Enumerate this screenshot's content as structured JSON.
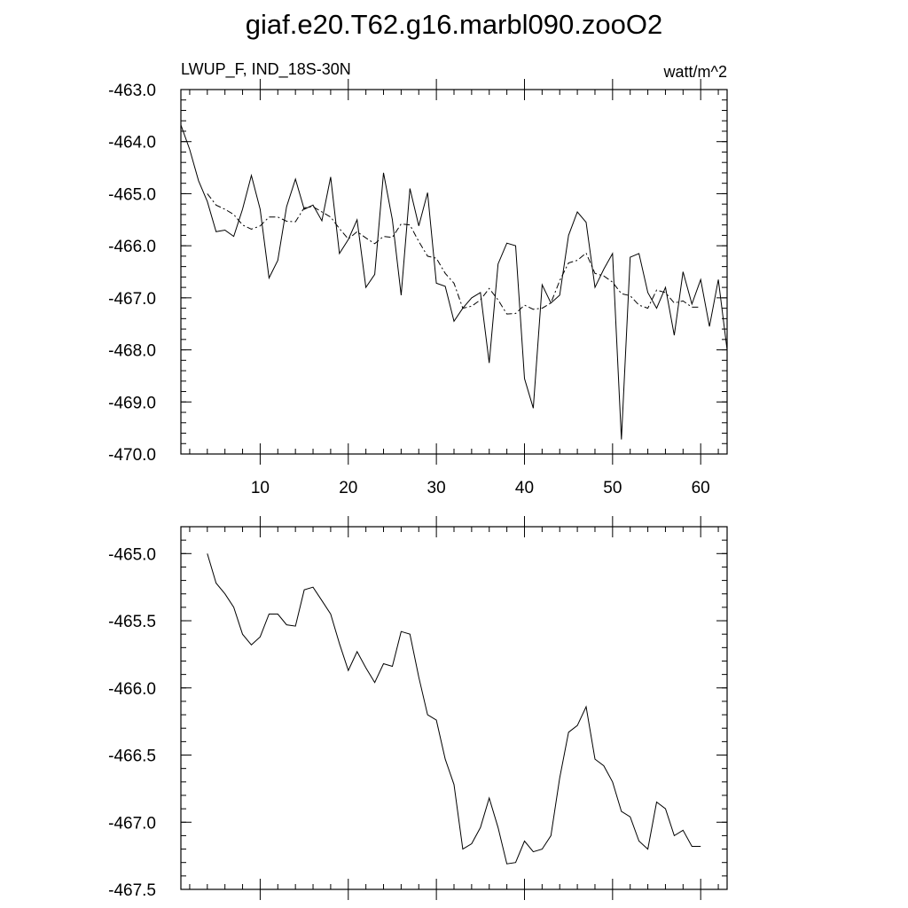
{
  "title": "giaf.e20.T62.g16.marbl090.zooO2",
  "chart_data": [
    {
      "type": "line",
      "left_label": "LWUP_F, IND_18S-30N",
      "right_label": "watt/m^2",
      "xlim": [
        1,
        63
      ],
      "ylim": [
        -470.0,
        -463.0
      ],
      "x_major_ticks": [
        10,
        20,
        30,
        40,
        50,
        60
      ],
      "x_tick_labels": [
        "10",
        "20",
        "30",
        "40",
        "50",
        "60"
      ],
      "y_major_ticks": [
        -463.0,
        -464.0,
        -465.0,
        -466.0,
        -467.0,
        -468.0,
        -469.0,
        -470.0
      ],
      "y_tick_labels": [
        "-463.0",
        "-464.0",
        "-465.0",
        "-466.0",
        "-467.0",
        "-468.0",
        "-469.0",
        "-470.0"
      ],
      "series": [
        {
          "style": "solid",
          "x": [
            1,
            2,
            3,
            4,
            5,
            6,
            7,
            8,
            9,
            10,
            11,
            12,
            13,
            14,
            15,
            16,
            17,
            18,
            19,
            20,
            21,
            22,
            23,
            24,
            25,
            26,
            27,
            28,
            29,
            30,
            31,
            32,
            33,
            34,
            35,
            36,
            37,
            38,
            39,
            40,
            41,
            42,
            43,
            44,
            45,
            46,
            47,
            48,
            49,
            50,
            51,
            52,
            53,
            54,
            55,
            56,
            57,
            58,
            59,
            60,
            61,
            62,
            63
          ],
          "values": [
            -463.68,
            -464.15,
            -464.75,
            -465.15,
            -465.73,
            -465.7,
            -465.82,
            -465.3,
            -464.65,
            -465.3,
            -466.62,
            -466.28,
            -465.25,
            -464.72,
            -465.3,
            -465.22,
            -465.52,
            -464.68,
            -466.15,
            -465.88,
            -465.5,
            -466.8,
            -466.55,
            -464.6,
            -465.5,
            -466.95,
            -464.9,
            -465.62,
            -464.98,
            -466.72,
            -466.78,
            -467.45,
            -467.2,
            -467.0,
            -466.9,
            -468.25,
            -466.35,
            -465.95,
            -466.0,
            -468.55,
            -469.12,
            -466.75,
            -467.1,
            -466.95,
            -465.8,
            -465.35,
            -465.55,
            -466.8,
            -466.45,
            -466.15,
            -469.72,
            -466.22,
            -466.15,
            -466.9,
            -467.2,
            -466.8,
            -467.72,
            -466.5,
            -467.12,
            -466.65,
            -467.55,
            -466.65,
            -468.0
          ]
        },
        {
          "style": "dash-dot",
          "x": [
            4,
            5,
            6,
            7,
            8,
            9,
            10,
            11,
            12,
            13,
            14,
            15,
            16,
            17,
            18,
            19,
            20,
            21,
            22,
            23,
            24,
            25,
            26,
            27,
            28,
            29,
            30,
            31,
            32,
            33,
            34,
            35,
            36,
            37,
            38,
            39,
            40,
            41,
            42,
            43,
            44,
            45,
            46,
            47,
            48,
            49,
            50,
            51,
            52,
            53,
            54,
            55,
            56,
            57,
            58,
            59,
            60
          ],
          "values": [
            -465.0,
            -465.22,
            -465.3,
            -465.4,
            -465.6,
            -465.68,
            -465.62,
            -465.45,
            -465.45,
            -465.53,
            -465.54,
            -465.27,
            -465.25,
            -465.35,
            -465.45,
            -465.67,
            -465.87,
            -465.73,
            -465.85,
            -465.96,
            -465.82,
            -465.84,
            -465.58,
            -465.6,
            -465.92,
            -466.2,
            -466.24,
            -466.53,
            -466.72,
            -467.2,
            -467.16,
            -467.04,
            -466.82,
            -467.04,
            -467.31,
            -467.3,
            -467.14,
            -467.22,
            -467.2,
            -467.1,
            -466.67,
            -466.33,
            -466.28,
            -466.14,
            -466.53,
            -466.58,
            -466.7,
            -466.92,
            -466.96,
            -467.14,
            -467.2,
            -466.85,
            -466.9,
            -467.1,
            -467.06,
            -467.18,
            -467.18
          ]
        }
      ]
    },
    {
      "type": "line",
      "xlim": [
        1,
        63
      ],
      "ylim": [
        -467.5,
        -464.8
      ],
      "x_major_ticks": [
        10,
        20,
        30,
        40,
        50,
        60
      ],
      "y_major_ticks": [
        -465.0,
        -465.5,
        -466.0,
        -466.5,
        -467.0,
        -467.5
      ],
      "y_tick_labels": [
        "-465.0",
        "-465.5",
        "-466.0",
        "-466.5",
        "-467.0",
        "-467.5"
      ],
      "series": [
        {
          "style": "solid",
          "x": [
            4,
            5,
            6,
            7,
            8,
            9,
            10,
            11,
            12,
            13,
            14,
            15,
            16,
            17,
            18,
            19,
            20,
            21,
            22,
            23,
            24,
            25,
            26,
            27,
            28,
            29,
            30,
            31,
            32,
            33,
            34,
            35,
            36,
            37,
            38,
            39,
            40,
            41,
            42,
            43,
            44,
            45,
            46,
            47,
            48,
            49,
            50,
            51,
            52,
            53,
            54,
            55,
            56,
            57,
            58,
            59,
            60
          ],
          "values": [
            -465.0,
            -465.22,
            -465.3,
            -465.4,
            -465.6,
            -465.68,
            -465.62,
            -465.45,
            -465.45,
            -465.53,
            -465.54,
            -465.27,
            -465.25,
            -465.35,
            -465.45,
            -465.67,
            -465.87,
            -465.73,
            -465.85,
            -465.96,
            -465.82,
            -465.84,
            -465.58,
            -465.6,
            -465.92,
            -466.2,
            -466.24,
            -466.53,
            -466.72,
            -467.2,
            -467.16,
            -467.04,
            -466.82,
            -467.04,
            -467.31,
            -467.3,
            -467.14,
            -467.22,
            -467.2,
            -467.1,
            -466.67,
            -466.33,
            -466.28,
            -466.14,
            -466.53,
            -466.58,
            -466.7,
            -466.92,
            -466.96,
            -467.14,
            -467.2,
            -466.85,
            -466.9,
            -467.1,
            -467.06,
            -467.18,
            -467.18
          ]
        }
      ]
    }
  ]
}
